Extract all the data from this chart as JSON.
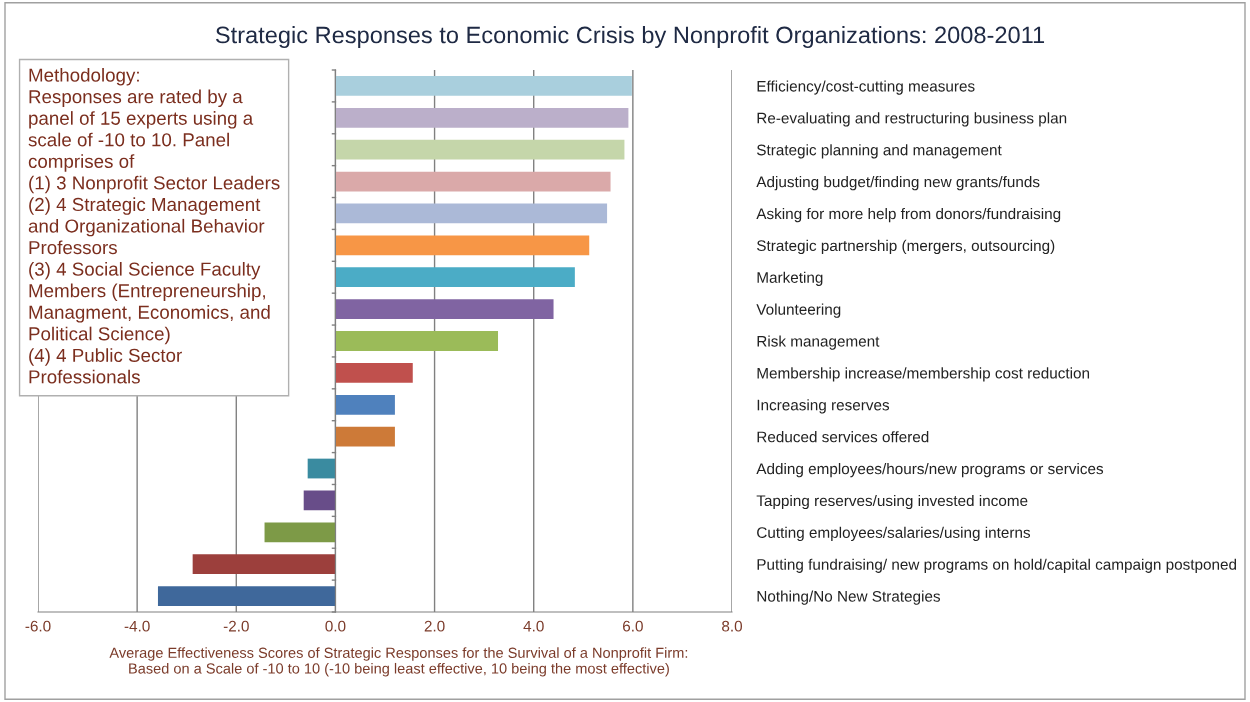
{
  "chart_data": {
    "type": "bar",
    "orientation": "horizontal",
    "title": "Strategic Responses to Economic Crisis by Nonprofit Organizations: 2008-2011",
    "xlabel": "Average Effectiveness Scores of Strategic Responses for the Survival of a Nonprofit Firm:\nBased on a Scale of -10 to 10 (-10 being least effective, 10 being the most effective)",
    "categories": [
      "Efficiency/cost-cutting measures",
      "Re-evaluating and restructuring business plan",
      "Strategic planning and management",
      "Adjusting budget/finding new grants/funds",
      "Asking for more help from donors/fundraising",
      "Strategic partnership (mergers, outsourcing)",
      "Marketing",
      "Volunteering",
      "Risk management",
      "Membership increase/membership cost reduction",
      "Increasing reserves",
      "Reduced services offered",
      "Adding employees/hours/new programs or services",
      "Tapping reserves/using invested income",
      "Cutting employees/salaries/using interns",
      "Putting fundraising/ new programs on hold/capital campaign postponed",
      "Nothing/No New Strategies"
    ],
    "values": [
      5.98,
      5.91,
      5.83,
      5.55,
      5.48,
      5.12,
      4.83,
      4.4,
      3.28,
      1.56,
      1.2,
      1.2,
      -0.56,
      -0.64,
      -1.43,
      -2.88,
      -3.58
    ],
    "colors": [
      "#a9cfdd",
      "#bbafca",
      "#c5d6aa",
      "#daa9a9",
      "#abb9d7",
      "#f79646",
      "#4bacc6",
      "#8064a2",
      "#9bbb59",
      "#c0504d",
      "#4f81bd",
      "#cd7a38",
      "#3a8ba0",
      "#684d89",
      "#7d9a47",
      "#9c3f3c",
      "#3f689b"
    ],
    "xlim": [
      -6,
      8
    ],
    "xticks": [
      {
        "value": -6,
        "label": "-6.0"
      },
      {
        "value": -4,
        "label": "-4.0"
      },
      {
        "value": -2,
        "label": "-2.0"
      },
      {
        "value": 0,
        "label": "0.0"
      },
      {
        "value": 2,
        "label": "2.0"
      },
      {
        "value": 4,
        "label": "4.0"
      },
      {
        "value": 6,
        "label": "6.0"
      },
      {
        "value": 8,
        "label": "8.0"
      }
    ],
    "grid": "x",
    "annotations": [
      "Methodology:\nResponses are rated by a\npanel of 15 experts using a\nscale of -10 to 10. Panel\ncomprises of\n(1) 3 Nonprofit Sector Leaders\n(2) 4 Strategic Management\nand Organizational Behavior\nProfessors\n(3) 4 Social Science Faculty\nMembers (Entrepreneurship,\nManagment, Economics, and\nPolitical Science)\n(4) 4 Public Sector\nProfessionals"
    ]
  }
}
